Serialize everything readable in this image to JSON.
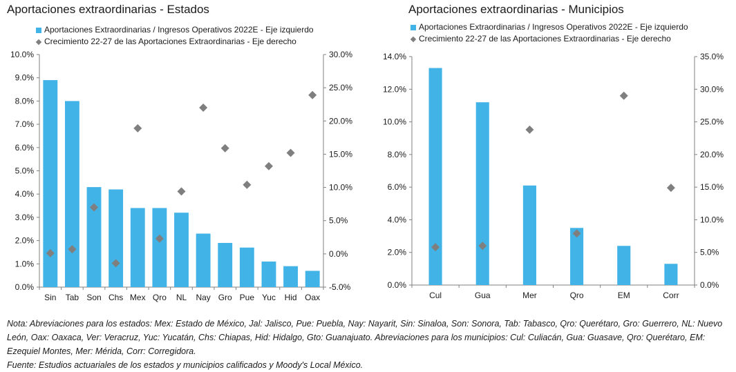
{
  "colors": {
    "bar": "#41B3E6",
    "diamond": "#7F7F7F",
    "axis": "#7F7F7F"
  },
  "chart_data": [
    {
      "type": "bar",
      "title": "Aportaciones extraordinarias - Estados",
      "categories": [
        "Sin",
        "Tab",
        "Son",
        "Chs",
        "Mex",
        "Qro",
        "NL",
        "Nay",
        "Gro",
        "Pue",
        "Yuc",
        "Hid",
        "Oax"
      ],
      "series": [
        {
          "name": "Aportaciones Extraordinarias / Ingresos Operativos 2022E - Eje izquierdo",
          "type": "bar",
          "axis": "left",
          "values": [
            8.9,
            8.0,
            4.3,
            4.2,
            3.4,
            3.4,
            3.2,
            2.3,
            1.9,
            1.7,
            1.1,
            0.9,
            0.7
          ]
        },
        {
          "name": "Crecimiento 22-27 de las Aportaciones Extraordinarias - Eje derecho",
          "type": "scatter",
          "marker": "diamond",
          "axis": "right",
          "values": [
            0.1,
            0.7,
            7.0,
            -1.4,
            18.9,
            2.3,
            9.4,
            22.0,
            15.9,
            10.4,
            13.2,
            15.2,
            23.9
          ]
        }
      ],
      "ylim_left": [
        0,
        10
      ],
      "ylim_right": [
        -5,
        30
      ],
      "yticks_left": [
        "0.0%",
        "1.0%",
        "2.0%",
        "3.0%",
        "4.0%",
        "5.0%",
        "6.0%",
        "7.0%",
        "8.0%",
        "9.0%",
        "10.0%"
      ],
      "yticks_right": [
        "-5.0%",
        "0.0%",
        "5.0%",
        "10.0%",
        "15.0%",
        "20.0%",
        "25.0%",
        "30.0%"
      ],
      "grid": false,
      "legend_position": "top-left"
    },
    {
      "type": "bar",
      "title": "Aportaciones extraordinarias - Municipios",
      "categories": [
        "Cul",
        "Gua",
        "Mer",
        "Qro",
        "EM",
        "Corr"
      ],
      "series": [
        {
          "name": "Aportaciones Extraordinarias / Ingresos Operativos 2022E - Eje izquierdo",
          "type": "bar",
          "axis": "left",
          "values": [
            13.3,
            11.2,
            6.1,
            3.5,
            2.4,
            1.3
          ]
        },
        {
          "name": "Crecimiento 22-27 de las Aportaciones Extraordinarias - Eje derecho",
          "type": "scatter",
          "marker": "diamond",
          "axis": "right",
          "values": [
            5.8,
            6.0,
            23.8,
            7.9,
            29.0,
            14.9
          ]
        }
      ],
      "ylim_left": [
        0,
        14
      ],
      "ylim_right": [
        0,
        35
      ],
      "yticks_left": [
        "0.0%",
        "2.0%",
        "4.0%",
        "6.0%",
        "8.0%",
        "10.0%",
        "12.0%",
        "14.0%"
      ],
      "yticks_right": [
        "0.0%",
        "5.0%",
        "10.0%",
        "15.0%",
        "20.0%",
        "25.0%",
        "30.0%",
        "35.0%"
      ],
      "grid": false,
      "legend_position": "top-left"
    }
  ],
  "note": {
    "text1": "Nota: Abreviaciones para los estados: Mex: Estado de México, Jal: Jalisco, Pue: Puebla, Nay: Nayarit, Sin: Sinaloa, Son: Sonora, Tab: Tabasco, Qro: Querétaro, Gro: Guerrero, NL: Nuevo León, Oax: Oaxaca, Ver: Veracruz, Yuc: Yucatán, Chs: Chiapas, Hid: Hidalgo, Gto: Guanajuato. Abreviaciones para los municipios: Cul: Culiacán, Gua: Guasave, Qro: Querétaro, EM: Ezequiel Montes, Mer: Mérida, Corr: Corregidora.",
    "text2": "Fuente: Estudios actuariales de los estados y municipios calificados y Moody's Local México."
  }
}
